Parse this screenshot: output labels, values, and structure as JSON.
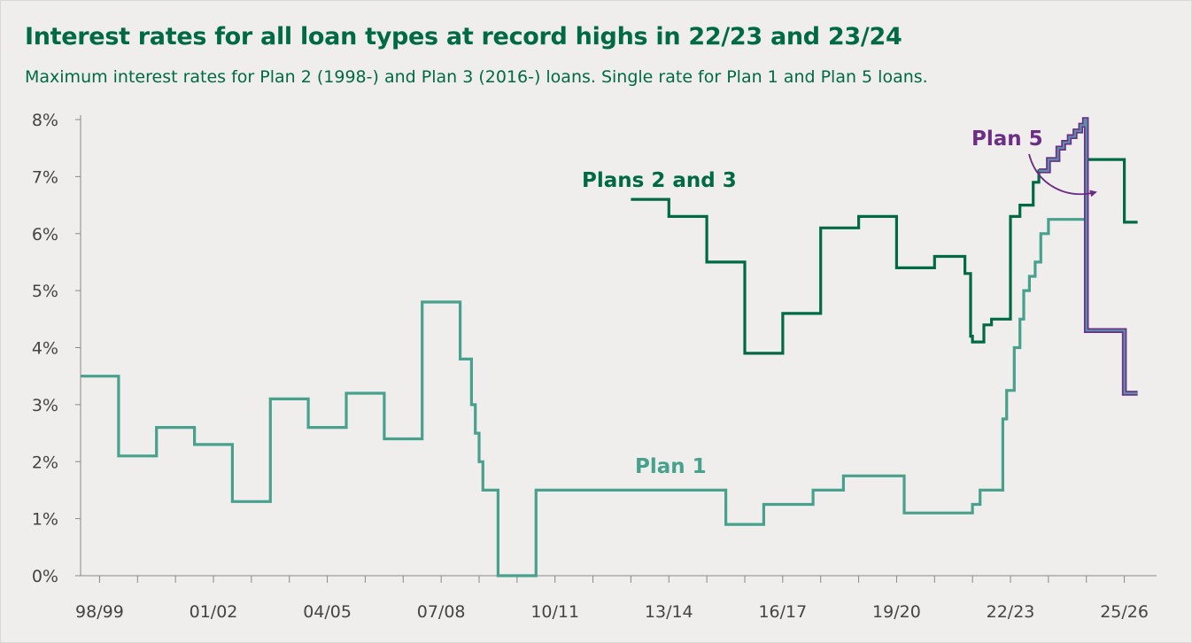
{
  "title": "Interest rates for all loan types at record highs in 22/23 and 23/24",
  "subtitle": "Maximum interest rates for Plan 2 (1998-) and Plan 3 (2016-) loans. Single rate for Plan 1 and Plan 5 loans.",
  "colors": {
    "background": "#efeeec",
    "plan1": "#47a18c",
    "plans23": "#006a45",
    "plan5": "#6b2d86",
    "plan5_fill": "#5b8fa8",
    "axis": "#888888",
    "text": "#444444",
    "title": "#006a45"
  },
  "chart_data": {
    "type": "line",
    "step": true,
    "xlim": [
      1998.0,
      2026.35
    ],
    "ylim": [
      0,
      8
    ],
    "grid": false,
    "x_ticks": [
      1998.5,
      1999.5,
      2000.5,
      2001.5,
      2002.5,
      2003.5,
      2004.5,
      2005.5,
      2006.5,
      2007.5,
      2008.5,
      2009.5,
      2010.5,
      2011.5,
      2012.5,
      2013.5,
      2014.5,
      2015.5,
      2016.5,
      2017.5,
      2018.5,
      2019.5,
      2020.5,
      2021.5,
      2022.5,
      2023.5,
      2024.5,
      2025.5
    ],
    "x_tick_labels": [
      {
        "x": 1998.5,
        "label": "98/99"
      },
      {
        "x": 2001.5,
        "label": "01/02"
      },
      {
        "x": 2004.5,
        "label": "04/05"
      },
      {
        "x": 2007.5,
        "label": "07/08"
      },
      {
        "x": 2010.5,
        "label": "10/11"
      },
      {
        "x": 2013.5,
        "label": "13/14"
      },
      {
        "x": 2016.5,
        "label": "16/17"
      },
      {
        "x": 2019.5,
        "label": "19/20"
      },
      {
        "x": 2022.5,
        "label": "22/23"
      },
      {
        "x": 2025.5,
        "label": "25/26"
      }
    ],
    "y_ticks": [
      {
        "y": 0,
        "label": "0%"
      },
      {
        "y": 1,
        "label": "1%"
      },
      {
        "y": 2,
        "label": "2%"
      },
      {
        "y": 3,
        "label": "3%"
      },
      {
        "y": 4,
        "label": "4%"
      },
      {
        "y": 5,
        "label": "5%"
      },
      {
        "y": 6,
        "label": "6%"
      },
      {
        "y": 7,
        "label": "7%"
      },
      {
        "y": 8,
        "label": "8%"
      }
    ],
    "series": [
      {
        "name": "Plan 1",
        "color_key": "plan1",
        "points": [
          [
            1998.0,
            3.5
          ],
          [
            1999.0,
            2.1
          ],
          [
            2000.0,
            2.6
          ],
          [
            2001.0,
            2.3
          ],
          [
            2002.0,
            1.3
          ],
          [
            2003.0,
            3.1
          ],
          [
            2004.0,
            2.6
          ],
          [
            2005.0,
            3.2
          ],
          [
            2006.0,
            2.4
          ],
          [
            2007.0,
            4.8
          ],
          [
            2008.0,
            3.8
          ],
          [
            2008.3,
            3.0
          ],
          [
            2008.4,
            2.5
          ],
          [
            2008.5,
            2.0
          ],
          [
            2008.6,
            1.5
          ],
          [
            2009.0,
            0.0
          ],
          [
            2010.0,
            1.5
          ],
          [
            2015.0,
            0.9
          ],
          [
            2016.0,
            1.25
          ],
          [
            2017.3,
            1.5
          ],
          [
            2018.1,
            1.75
          ],
          [
            2019.7,
            1.1
          ],
          [
            2021.5,
            1.25
          ],
          [
            2021.7,
            1.5
          ],
          [
            2022.3,
            2.75
          ],
          [
            2022.4,
            3.25
          ],
          [
            2022.6,
            4.0
          ],
          [
            2022.75,
            4.5
          ],
          [
            2022.85,
            5.0
          ],
          [
            2023.0,
            5.25
          ],
          [
            2023.15,
            5.5
          ],
          [
            2023.3,
            6.0
          ],
          [
            2023.5,
            6.25
          ],
          [
            2024.5,
            4.3
          ],
          [
            2025.5,
            3.2
          ],
          [
            2025.85,
            3.2
          ]
        ]
      },
      {
        "name": "Plans 2 and 3",
        "color_key": "plans23",
        "points": [
          [
            2012.5,
            6.6
          ],
          [
            2013.5,
            6.3
          ],
          [
            2014.5,
            5.5
          ],
          [
            2015.5,
            3.9
          ],
          [
            2016.5,
            4.6
          ],
          [
            2017.5,
            6.1
          ],
          [
            2018.5,
            6.3
          ],
          [
            2019.5,
            5.4
          ],
          [
            2020.5,
            5.6
          ],
          [
            2021.3,
            5.3
          ],
          [
            2021.45,
            4.2
          ],
          [
            2021.5,
            4.1
          ],
          [
            2021.8,
            4.4
          ],
          [
            2022.0,
            4.5
          ],
          [
            2022.5,
            6.3
          ],
          [
            2022.75,
            6.5
          ],
          [
            2023.1,
            6.9
          ],
          [
            2023.25,
            7.1
          ],
          [
            2023.5,
            7.3
          ],
          [
            2023.75,
            7.5
          ],
          [
            2023.9,
            7.6
          ],
          [
            2024.05,
            7.7
          ],
          [
            2024.2,
            7.8
          ],
          [
            2024.35,
            7.9
          ],
          [
            2024.45,
            8.0
          ],
          [
            2024.5,
            7.3
          ],
          [
            2025.5,
            6.2
          ],
          [
            2025.85,
            6.2
          ]
        ]
      },
      {
        "name": "Plan 5",
        "color_key": "plan5",
        "points": [
          [
            2024.5,
            7.3
          ],
          [
            2024.5,
            4.3
          ],
          [
            2025.5,
            3.2
          ],
          [
            2025.85,
            3.2
          ]
        ]
      }
    ],
    "annotations": [
      {
        "text": "Plans 2 and 3",
        "series": "Plans 2 and 3"
      },
      {
        "text": "Plan 1",
        "series": "Plan 1"
      },
      {
        "text": "Plan 5",
        "series": "Plan 5",
        "arrow": true
      }
    ]
  }
}
